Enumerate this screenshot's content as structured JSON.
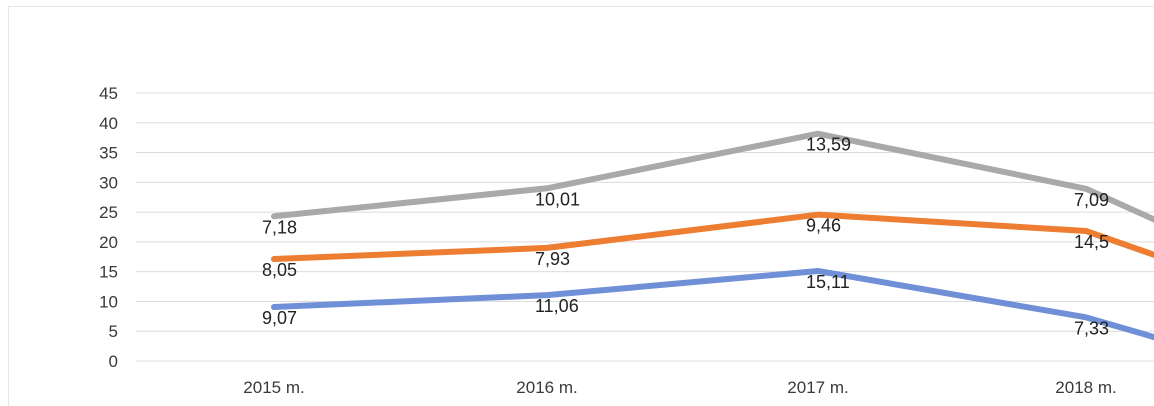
{
  "chart_data": {
    "type": "line",
    "title": "",
    "xlabel": "",
    "ylabel": "",
    "categories": [
      "2015 m.",
      "2016 m.",
      "2017 m.",
      "2018 m."
    ],
    "ylim": [
      0,
      45
    ],
    "yticks": [
      0,
      5,
      10,
      15,
      20,
      25,
      30,
      35,
      40,
      45
    ],
    "grid": true,
    "legend": "none",
    "series": [
      {
        "color": "#6f8fd6",
        "values": [
          9.07,
          11.06,
          15.11,
          7.33
        ],
        "labels": [
          "9,07",
          "11,06",
          "15,11",
          "7,33"
        ]
      },
      {
        "color": "#ed7d31",
        "values": [
          17.12,
          18.99,
          24.57,
          21.83
        ],
        "labels": [
          "8,05",
          "7,93",
          "9,46",
          "14,5"
        ]
      },
      {
        "color": "#a9a9a9",
        "values": [
          24.3,
          29.0,
          38.16,
          28.92
        ],
        "labels": [
          "7,18",
          "10,01",
          "13,59",
          "7,09"
        ]
      }
    ]
  }
}
